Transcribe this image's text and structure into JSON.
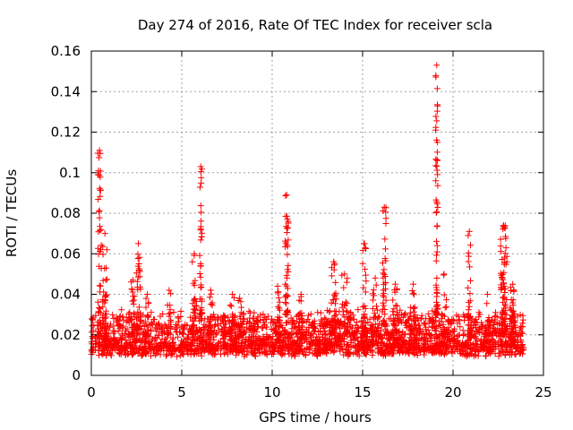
{
  "chart_data": {
    "type": "scatter",
    "title": "Day 274 of 2016, Rate Of TEC Index for receiver scla",
    "xlabel": "GPS time / hours",
    "ylabel": "ROTI / TECUs",
    "xlim": [
      0,
      25
    ],
    "ylim": [
      0,
      0.16
    ],
    "xticks": [
      0,
      5,
      10,
      15,
      20,
      25
    ],
    "xtick_labels": [
      "0",
      "5",
      "10",
      "15",
      "20",
      "25"
    ],
    "yticks": [
      0,
      0.02,
      0.04,
      0.06,
      0.08,
      0.1,
      0.12,
      0.14,
      0.16
    ],
    "ytick_labels": [
      "0",
      "0.02",
      "0.04",
      "0.06",
      "0.08",
      "0.1",
      "0.12",
      "0.14",
      "0.16"
    ],
    "grid": true,
    "marker": "+",
    "color": "#ff0000",
    "series": [
      {
        "name": "ROTI",
        "background": {
          "x_start": 0,
          "x_end": 23.9,
          "count": 2600,
          "base": 0.015,
          "spread": 0.011,
          "min": 0.004
        },
        "clusters": [
          {
            "x": 0.45,
            "width": 0.2,
            "ymin": 0.018,
            "ymax": 0.111,
            "count": 45
          },
          {
            "x": 0.75,
            "width": 0.25,
            "ymin": 0.018,
            "ymax": 0.07,
            "count": 40
          },
          {
            "x": 2.3,
            "width": 0.2,
            "ymin": 0.02,
            "ymax": 0.047,
            "count": 18
          },
          {
            "x": 2.6,
            "width": 0.25,
            "ymin": 0.02,
            "ymax": 0.065,
            "count": 30
          },
          {
            "x": 3.1,
            "width": 0.2,
            "ymin": 0.02,
            "ymax": 0.04,
            "count": 12
          },
          {
            "x": 4.3,
            "width": 0.2,
            "ymin": 0.02,
            "ymax": 0.042,
            "count": 15
          },
          {
            "x": 5.7,
            "width": 0.25,
            "ymin": 0.02,
            "ymax": 0.06,
            "count": 30
          },
          {
            "x": 6.05,
            "width": 0.15,
            "ymin": 0.03,
            "ymax": 0.103,
            "count": 40
          },
          {
            "x": 6.6,
            "width": 0.2,
            "ymin": 0.02,
            "ymax": 0.042,
            "count": 18
          },
          {
            "x": 7.8,
            "width": 0.3,
            "ymin": 0.02,
            "ymax": 0.04,
            "count": 15
          },
          {
            "x": 8.2,
            "width": 0.2,
            "ymin": 0.02,
            "ymax": 0.038,
            "count": 12
          },
          {
            "x": 10.3,
            "width": 0.3,
            "ymin": 0.02,
            "ymax": 0.044,
            "count": 18
          },
          {
            "x": 10.8,
            "width": 0.2,
            "ymin": 0.03,
            "ymax": 0.089,
            "count": 40
          },
          {
            "x": 11.6,
            "width": 0.3,
            "ymin": 0.02,
            "ymax": 0.04,
            "count": 15
          },
          {
            "x": 13.4,
            "width": 0.3,
            "ymin": 0.02,
            "ymax": 0.056,
            "count": 30
          },
          {
            "x": 14.0,
            "width": 0.3,
            "ymin": 0.02,
            "ymax": 0.05,
            "count": 22
          },
          {
            "x": 15.1,
            "width": 0.2,
            "ymin": 0.02,
            "ymax": 0.065,
            "count": 28
          },
          {
            "x": 16.2,
            "width": 0.2,
            "ymin": 0.025,
            "ymax": 0.083,
            "count": 35
          },
          {
            "x": 15.7,
            "width": 0.3,
            "ymin": 0.02,
            "ymax": 0.048,
            "count": 22
          },
          {
            "x": 16.8,
            "width": 0.3,
            "ymin": 0.02,
            "ymax": 0.045,
            "count": 20
          },
          {
            "x": 17.8,
            "width": 0.3,
            "ymin": 0.02,
            "ymax": 0.045,
            "count": 18
          },
          {
            "x": 19.1,
            "width": 0.12,
            "ymin": 0.03,
            "ymax": 0.153,
            "count": 55
          },
          {
            "x": 19.5,
            "width": 0.3,
            "ymin": 0.02,
            "ymax": 0.05,
            "count": 22
          },
          {
            "x": 20.9,
            "width": 0.15,
            "ymin": 0.02,
            "ymax": 0.071,
            "count": 30
          },
          {
            "x": 21.9,
            "width": 0.25,
            "ymin": 0.02,
            "ymax": 0.04,
            "count": 15
          },
          {
            "x": 22.8,
            "width": 0.35,
            "ymin": 0.02,
            "ymax": 0.074,
            "count": 80
          },
          {
            "x": 23.3,
            "width": 0.3,
            "ymin": 0.015,
            "ymax": 0.045,
            "count": 40
          }
        ]
      }
    ]
  }
}
